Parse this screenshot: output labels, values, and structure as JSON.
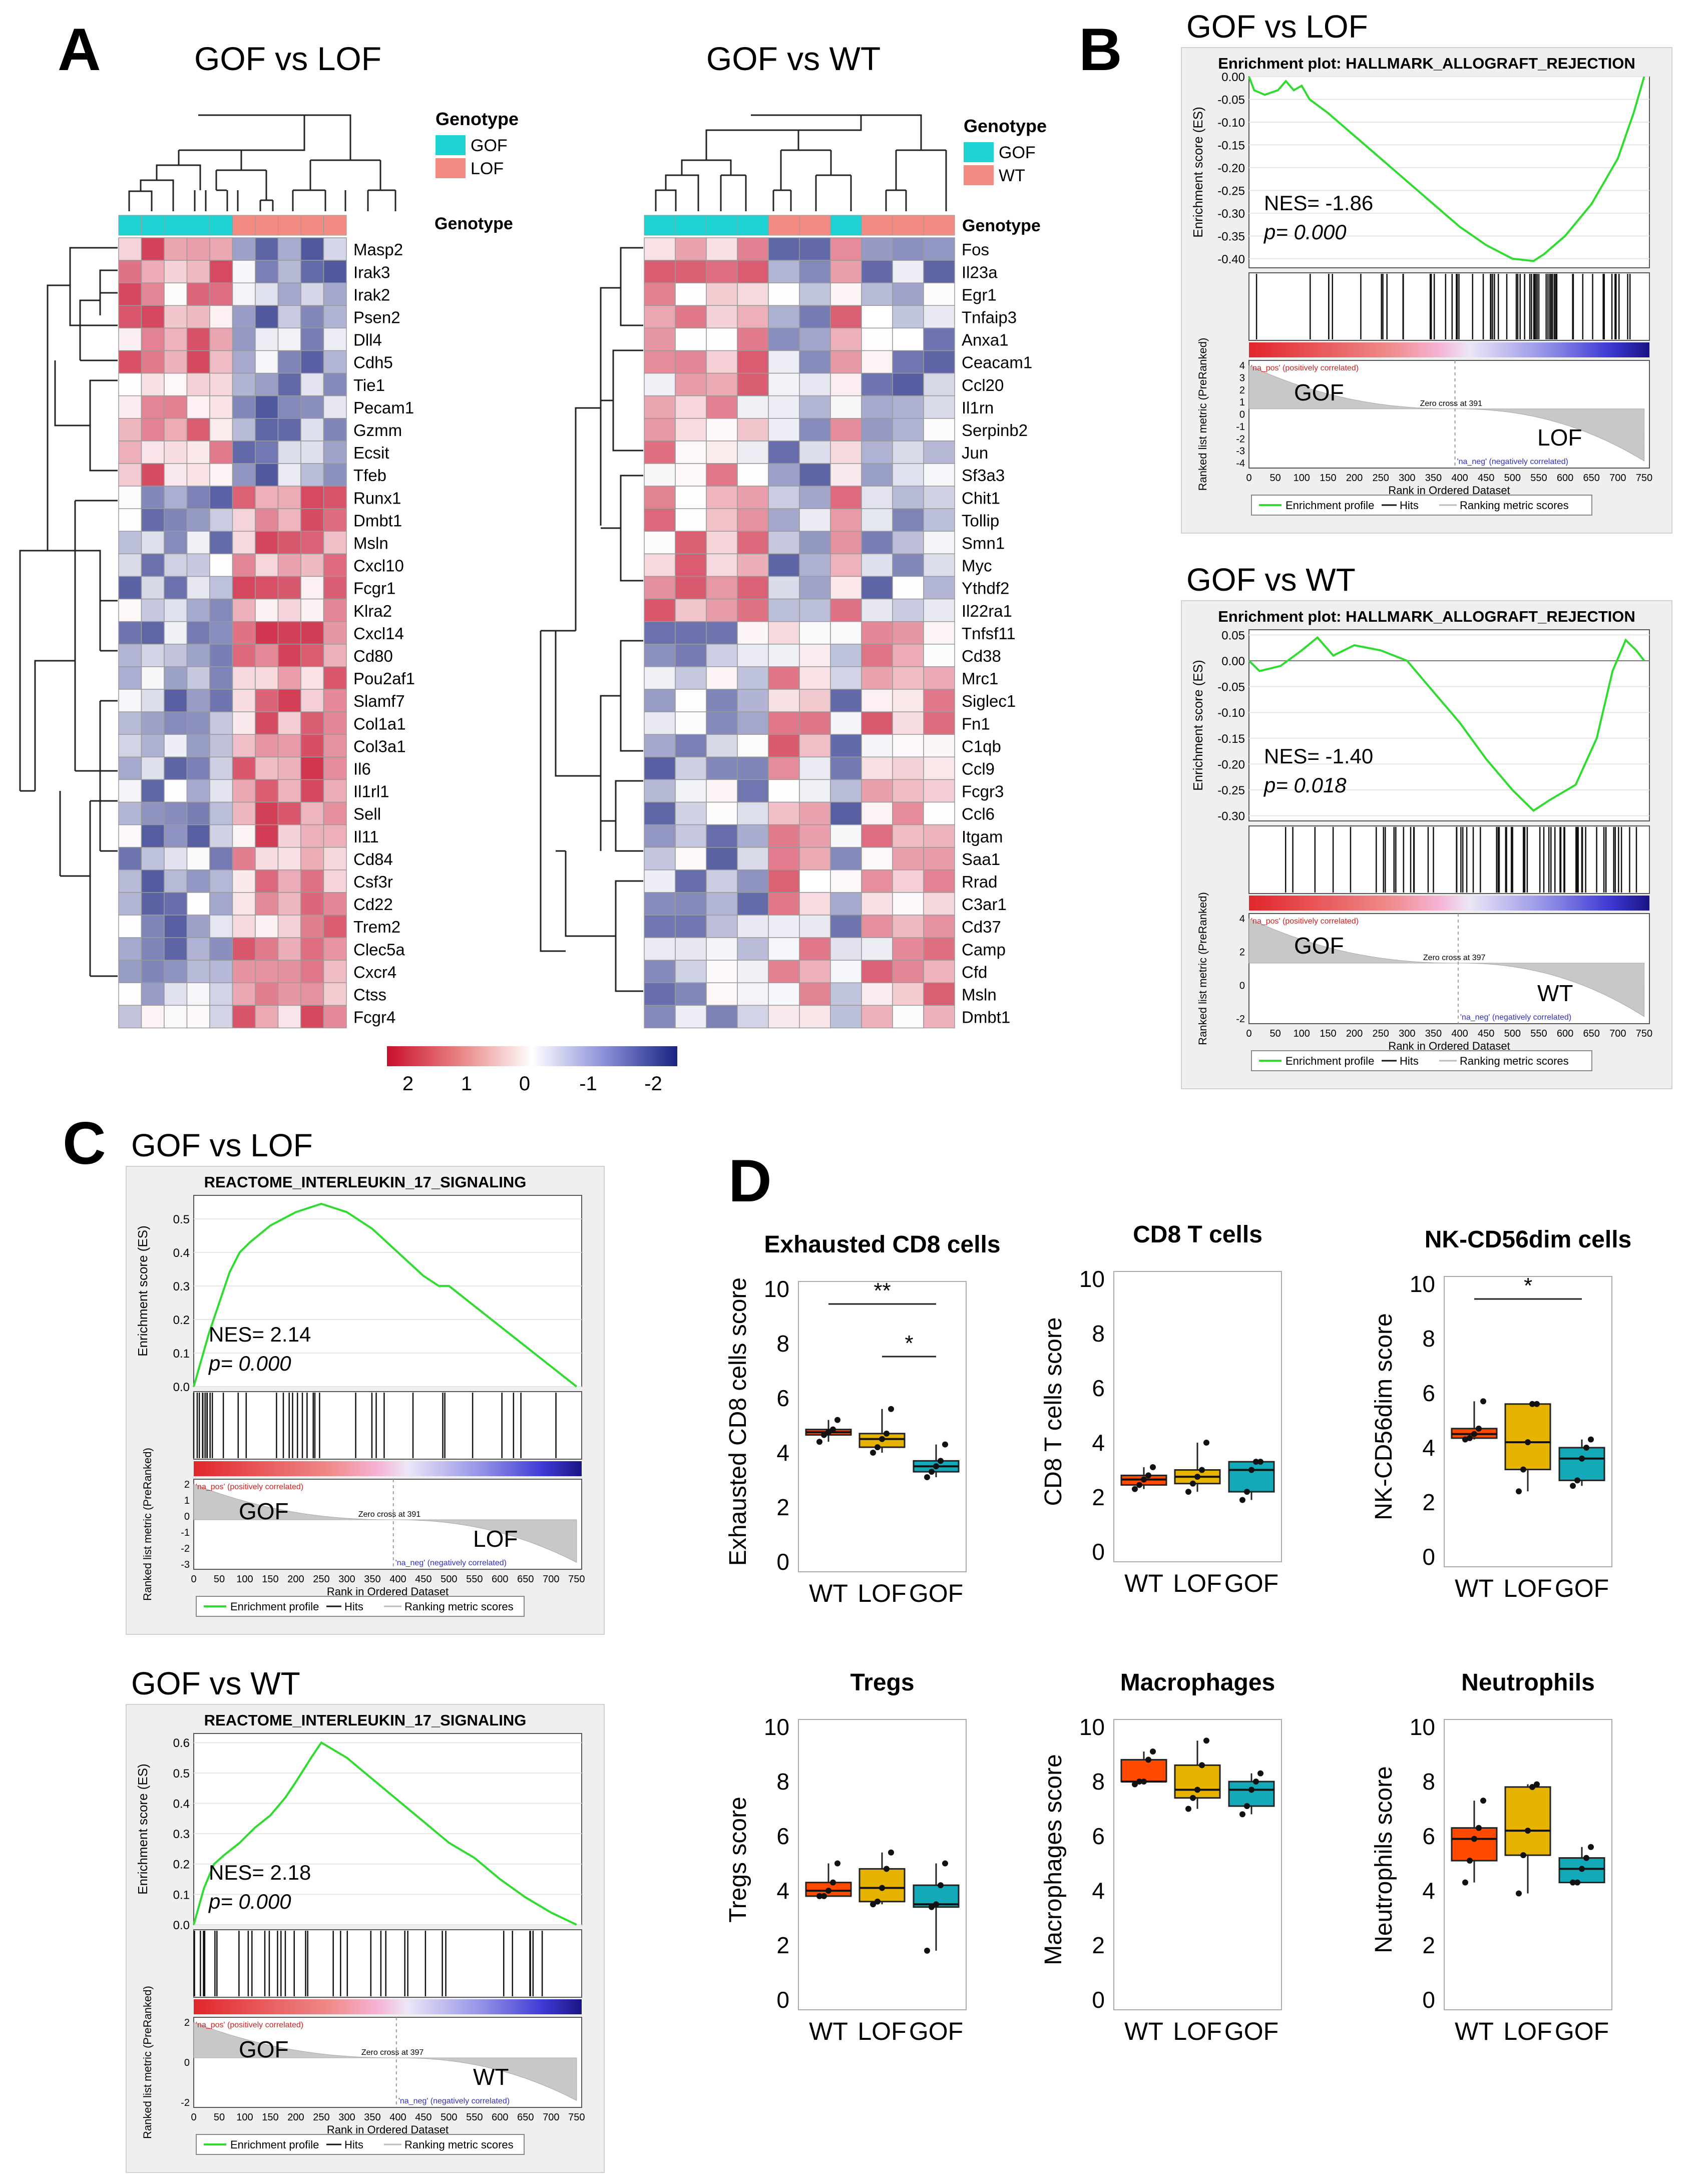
{
  "panel_labels": [
    "A",
    "B",
    "C",
    "D"
  ],
  "colors": {
    "wt": "#ff4a00",
    "lof": "#e6b400",
    "gof": "#14a9b8",
    "genotype_gof": "#1fd3d3",
    "genotype_lof": "#f28b82",
    "heat_high": "#c8102e",
    "heat_low": "#1a2480",
    "es_curve": "#2edc2e"
  },
  "heatmaps": {
    "legend_title": "Genotype",
    "row_label": "Genotype",
    "gof_lof": {
      "title": "GOF vs LOF",
      "legend": [
        "GOF",
        "LOF"
      ],
      "columns": [
        "GOF",
        "GOF",
        "GOF",
        "GOF",
        "GOF",
        "LOF",
        "LOF",
        "LOF",
        "LOF",
        "LOF"
      ],
      "genes": [
        "Masp2",
        "Irak3",
        "Irak2",
        "Psen2",
        "Dll4",
        "Cdh5",
        "Tie1",
        "Pecam1",
        "Gzmm",
        "Ecsit",
        "Tfeb",
        "Runx1",
        "Dmbt1",
        "Msln",
        "Cxcl10",
        "Fcgr1",
        "Klra2",
        "Cxcl14",
        "Cd80",
        "Pou2af1",
        "Slamf7",
        "Col1a1",
        "Col3a1",
        "Il6",
        "Il1rl1",
        "Sell",
        "Il11",
        "Cd84",
        "Csf3r",
        "Cd22",
        "Trem2",
        "Clec5a",
        "Cxcr4",
        "Ctss",
        "Fcgr4"
      ]
    },
    "gof_wt": {
      "title": "GOF vs WT",
      "legend": [
        "GOF",
        "WT"
      ],
      "columns": [
        "GOF",
        "GOF",
        "GOF",
        "GOF",
        "WT",
        "WT",
        "GOF",
        "WT",
        "WT",
        "WT"
      ],
      "genes": [
        "Fos",
        "Il23a",
        "Egr1",
        "Tnfaip3",
        "Anxa1",
        "Ceacam1",
        "Ccl20",
        "Il1rn",
        "Serpinb2",
        "Jun",
        "Sf3a3",
        "Chit1",
        "Tollip",
        "Smn1",
        "Myc",
        "Ythdf2",
        "Il22ra1",
        "Tnfsf11",
        "Cd38",
        "Mrc1",
        "Siglec1",
        "Fn1",
        "C1qb",
        "Ccl9",
        "Fcgr3",
        "Ccl6",
        "Itgam",
        "Saa1",
        "Rrad",
        "C3ar1",
        "Cd37",
        "Camp",
        "Cfd",
        "Msln",
        "Dmbt1"
      ]
    },
    "colorbar": {
      "labels": [
        "2",
        "1",
        "0",
        "-1",
        "-2"
      ]
    }
  },
  "gsea": {
    "legend": [
      "Enrichment profile",
      "Hits",
      "Ranking metric scores"
    ],
    "xlabel": "Rank in Ordered Dataset",
    "ylabel_es": "Enrichment score (ES)",
    "ylabel_metric": "Ranked list metric (PreRanked)",
    "na_pos": "'na_pos' (positively correlated)",
    "na_neg": "'na_neg' (negatively correlated)",
    "plots": [
      {
        "header": "GOF vs LOF",
        "title": "Enrichment plot: HALLMARK_ALLOGRAFT_REJECTION",
        "nes": "NES= -1.86",
        "p": "p= 0.000",
        "pos_label": "GOF",
        "neg_label": "LOF",
        "zero_cross": "Zero cross at 391",
        "zero_rank": 391,
        "es_ticks": [
          "0.00",
          "-0.05",
          "-0.10",
          "-0.15",
          "-0.20",
          "-0.25",
          "-0.30",
          "-0.35",
          "-0.40"
        ],
        "es_min": -0.42,
        "es_max": 0.0,
        "metric_ticks": [
          "4",
          "3",
          "2",
          "1",
          "0",
          "-1",
          "-2",
          "-3",
          "-4"
        ],
        "x_ticks": [
          "0",
          "50",
          "100",
          "150",
          "200",
          "250",
          "300",
          "350",
          "400",
          "450",
          "500",
          "550",
          "600",
          "650",
          "700",
          "750"
        ],
        "es_points": [
          [
            0,
            0
          ],
          [
            10,
            -0.03
          ],
          [
            30,
            -0.04
          ],
          [
            55,
            -0.03
          ],
          [
            70,
            -0.01
          ],
          [
            85,
            -0.03
          ],
          [
            100,
            -0.02
          ],
          [
            115,
            -0.05
          ],
          [
            150,
            -0.08
          ],
          [
            200,
            -0.13
          ],
          [
            250,
            -0.18
          ],
          [
            300,
            -0.23
          ],
          [
            350,
            -0.28
          ],
          [
            400,
            -0.33
          ],
          [
            450,
            -0.37
          ],
          [
            500,
            -0.4
          ],
          [
            540,
            -0.405
          ],
          [
            560,
            -0.39
          ],
          [
            600,
            -0.35
          ],
          [
            650,
            -0.28
          ],
          [
            700,
            -0.18
          ],
          [
            730,
            -0.08
          ],
          [
            750,
            0
          ]
        ]
      },
      {
        "header": "GOF vs WT",
        "title": "Enrichment plot: HALLMARK_ALLOGRAFT_REJECTION",
        "nes": "NES= -1.40",
        "p": "p= 0.018",
        "pos_label": "GOF",
        "neg_label": "WT",
        "zero_cross": "Zero cross at 397",
        "zero_rank": 397,
        "es_ticks": [
          "0.05",
          "0.00",
          "-0.05",
          "-0.10",
          "-0.15",
          "-0.20",
          "-0.25",
          "-0.30"
        ],
        "es_min": -0.31,
        "es_max": 0.06,
        "metric_ticks": [
          "4",
          "2",
          "0",
          "-2"
        ],
        "x_ticks": [
          "0",
          "50",
          "100",
          "150",
          "200",
          "250",
          "300",
          "350",
          "400",
          "450",
          "500",
          "550",
          "600",
          "650",
          "700",
          "750"
        ],
        "es_points": [
          [
            0,
            0
          ],
          [
            20,
            -0.02
          ],
          [
            60,
            -0.01
          ],
          [
            100,
            0.02
          ],
          [
            130,
            0.045
          ],
          [
            160,
            0.01
          ],
          [
            200,
            0.03
          ],
          [
            250,
            0.02
          ],
          [
            300,
            0.0
          ],
          [
            350,
            -0.06
          ],
          [
            400,
            -0.12
          ],
          [
            450,
            -0.19
          ],
          [
            500,
            -0.25
          ],
          [
            540,
            -0.29
          ],
          [
            570,
            -0.27
          ],
          [
            620,
            -0.24
          ],
          [
            660,
            -0.15
          ],
          [
            690,
            -0.02
          ],
          [
            715,
            0.04
          ],
          [
            735,
            0.02
          ],
          [
            750,
            0
          ]
        ]
      },
      {
        "header": "GOF vs LOF",
        "title": "REACTOME_INTERLEUKIN_17_SIGNALING",
        "nes": "NES= 2.14",
        "p": "p= 0.000",
        "pos_label": "GOF",
        "neg_label": "LOF",
        "zero_cross": "Zero cross at 391",
        "zero_rank": 391,
        "es_ticks": [
          "0.5",
          "0.4",
          "0.3",
          "0.2",
          "0.1",
          "0.0"
        ],
        "es_min": 0.0,
        "es_max": 0.57,
        "metric_ticks": [
          "2",
          "1",
          "0",
          "-1",
          "-2",
          "-3"
        ],
        "x_ticks": [
          "0",
          "50",
          "100",
          "150",
          "200",
          "250",
          "300",
          "350",
          "400",
          "450",
          "500",
          "550",
          "600",
          "650",
          "700",
          "750"
        ],
        "es_points": [
          [
            0,
            0
          ],
          [
            15,
            0.08
          ],
          [
            30,
            0.16
          ],
          [
            50,
            0.25
          ],
          [
            70,
            0.34
          ],
          [
            90,
            0.4
          ],
          [
            110,
            0.43
          ],
          [
            150,
            0.48
          ],
          [
            200,
            0.52
          ],
          [
            250,
            0.545
          ],
          [
            300,
            0.52
          ],
          [
            350,
            0.47
          ],
          [
            400,
            0.4
          ],
          [
            450,
            0.33
          ],
          [
            480,
            0.3
          ],
          [
            500,
            0.3
          ],
          [
            550,
            0.24
          ],
          [
            600,
            0.18
          ],
          [
            650,
            0.12
          ],
          [
            700,
            0.06
          ],
          [
            750,
            0.0
          ]
        ]
      },
      {
        "header": "GOF vs WT",
        "title": "REACTOME_INTERLEUKIN_17_SIGNALING",
        "nes": "NES= 2.18",
        "p": "p= 0.000",
        "pos_label": "GOF",
        "neg_label": "WT",
        "zero_cross": "Zero cross at 397",
        "zero_rank": 397,
        "es_ticks": [
          "0.6",
          "0.5",
          "0.4",
          "0.3",
          "0.2",
          "0.1",
          "0.0"
        ],
        "es_min": 0.0,
        "es_max": 0.63,
        "metric_ticks": [
          "2",
          "0",
          "-2"
        ],
        "x_ticks": [
          "0",
          "50",
          "100",
          "150",
          "200",
          "250",
          "300",
          "350",
          "400",
          "450",
          "500",
          "550",
          "600",
          "650",
          "700",
          "750"
        ],
        "es_points": [
          [
            0,
            0
          ],
          [
            20,
            0.12
          ],
          [
            40,
            0.2
          ],
          [
            60,
            0.23
          ],
          [
            90,
            0.27
          ],
          [
            120,
            0.32
          ],
          [
            150,
            0.36
          ],
          [
            180,
            0.42
          ],
          [
            200,
            0.47
          ],
          [
            230,
            0.55
          ],
          [
            250,
            0.6
          ],
          [
            300,
            0.55
          ],
          [
            350,
            0.48
          ],
          [
            400,
            0.41
          ],
          [
            450,
            0.34
          ],
          [
            500,
            0.27
          ],
          [
            550,
            0.22
          ],
          [
            600,
            0.15
          ],
          [
            650,
            0.09
          ],
          [
            700,
            0.04
          ],
          [
            750,
            0.0
          ]
        ]
      }
    ]
  },
  "boxplots": {
    "categories": [
      "WT",
      "LOF",
      "GOF"
    ],
    "y_ticks": [
      "0",
      "2",
      "4",
      "6",
      "8",
      "10"
    ],
    "plots": [
      {
        "title": "Exhausted CD8 cells",
        "ylabel": "Exhausted CD8 cells score",
        "stats": [
          [
            4.4,
            4.65,
            4.75,
            4.85,
            5.2
          ],
          [
            4.0,
            4.2,
            4.5,
            4.7,
            5.6
          ],
          [
            3.1,
            3.3,
            3.5,
            3.7,
            4.3
          ]
        ],
        "sig": [
          {
            "from": 0,
            "to": 2,
            "label": "**"
          },
          {
            "from": 1,
            "to": 2,
            "label": "*"
          }
        ]
      },
      {
        "title": "CD8 T cells",
        "ylabel": "CD8 T cells score",
        "stats": [
          [
            2.3,
            2.45,
            2.65,
            2.8,
            3.1
          ],
          [
            2.2,
            2.5,
            2.75,
            3.0,
            4.0
          ],
          [
            1.9,
            2.2,
            3.0,
            3.3,
            3.3
          ]
        ],
        "sig": []
      },
      {
        "title": "NK-CD56dim cells",
        "ylabel": "NK-CD56dim score",
        "stats": [
          [
            4.3,
            4.35,
            4.5,
            4.7,
            5.7
          ],
          [
            2.4,
            3.2,
            4.2,
            5.6,
            5.6
          ],
          [
            2.6,
            2.8,
            3.6,
            4.0,
            4.3
          ]
        ],
        "sig": [
          {
            "from": 0,
            "to": 2,
            "label": "*"
          }
        ]
      },
      {
        "title": "Tregs",
        "ylabel": "Tregs score",
        "stats": [
          [
            3.8,
            3.8,
            4.0,
            4.3,
            5.0
          ],
          [
            3.5,
            3.6,
            4.1,
            4.8,
            5.4
          ],
          [
            1.8,
            3.4,
            3.5,
            4.2,
            5.0
          ]
        ],
        "sig": []
      },
      {
        "title": "Macrophages",
        "ylabel": "Macrophages score",
        "stats": [
          [
            7.9,
            8.0,
            8.0,
            8.8,
            9.1
          ],
          [
            7.0,
            7.4,
            7.7,
            8.6,
            9.5
          ],
          [
            6.8,
            7.1,
            7.7,
            8.0,
            8.3
          ]
        ],
        "sig": []
      },
      {
        "title": "Neutrophils",
        "ylabel": "Neutrophils score",
        "stats": [
          [
            4.3,
            5.1,
            5.9,
            6.3,
            7.3
          ],
          [
            3.9,
            5.3,
            6.2,
            7.8,
            7.9
          ],
          [
            4.3,
            4.3,
            4.8,
            5.2,
            5.6
          ]
        ],
        "sig": []
      }
    ]
  }
}
